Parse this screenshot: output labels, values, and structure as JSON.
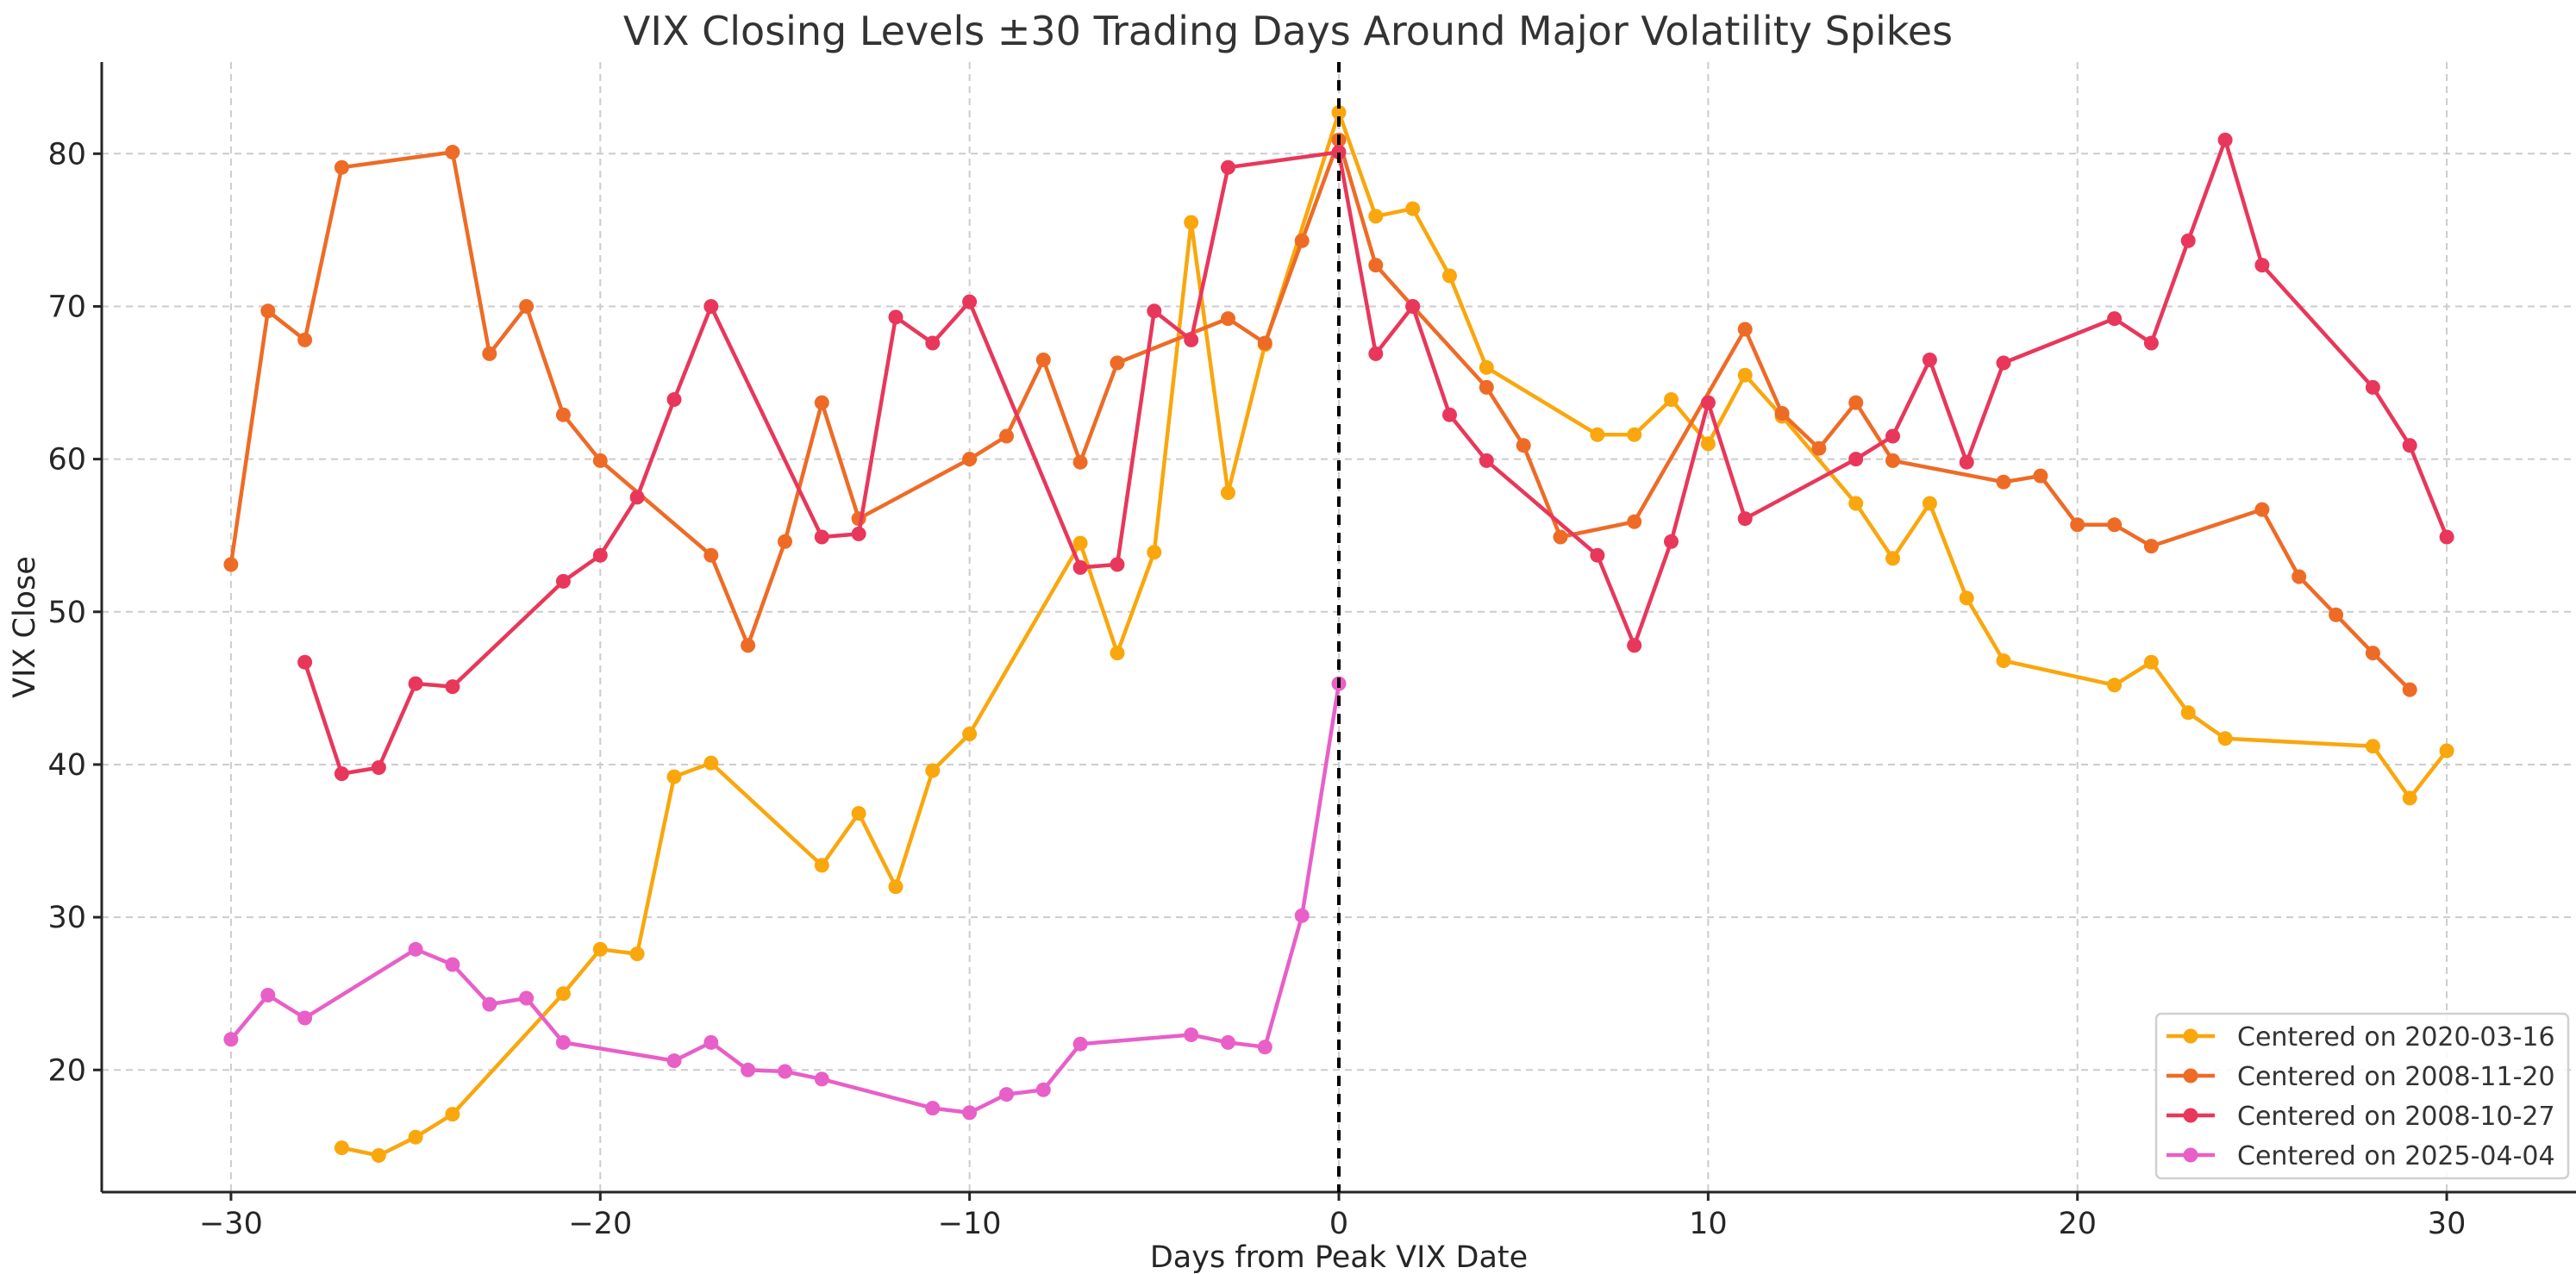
{
  "chart_data": {
    "type": "line",
    "title": "VIX Closing Levels ±30 Trading Days Around Major Volatility Spikes",
    "xlabel": "Days from Peak VIX Date",
    "ylabel": "VIX Close",
    "xlim": [
      -33.5,
      33.5
    ],
    "ylim": [
      12,
      86
    ],
    "xticks": [
      -30,
      -20,
      -10,
      0,
      10,
      20,
      30
    ],
    "yticks": [
      20,
      30,
      40,
      50,
      60,
      70,
      80
    ],
    "grid": true,
    "legend_position": "lower-right",
    "reference_line": {
      "x": 0,
      "style": "dashed",
      "color": "#000000"
    },
    "series": [
      {
        "name": "Centered on 2020-03-16",
        "color": "#f9a70d",
        "points": [
          [
            -27,
            14.9
          ],
          [
            -26,
            14.4
          ],
          [
            -25,
            15.6
          ],
          [
            -24,
            17.1
          ],
          [
            -21,
            25.0
          ],
          [
            -20,
            27.9
          ],
          [
            -19,
            27.6
          ],
          [
            -18,
            39.2
          ],
          [
            -17,
            40.1
          ],
          [
            -14,
            33.4
          ],
          [
            -13,
            36.8
          ],
          [
            -12,
            32.0
          ],
          [
            -11,
            39.6
          ],
          [
            -10,
            42.0
          ],
          [
            -7,
            54.5
          ],
          [
            -6,
            47.3
          ],
          [
            -5,
            53.9
          ],
          [
            -4,
            75.5
          ],
          [
            -3,
            57.8
          ],
          [
            -2,
            67.5
          ],
          [
            0,
            82.7
          ],
          [
            1,
            75.9
          ],
          [
            2,
            76.4
          ],
          [
            3,
            72.0
          ],
          [
            4,
            66.0
          ],
          [
            7,
            61.6
          ],
          [
            8,
            61.6
          ],
          [
            9,
            63.9
          ],
          [
            10,
            61.0
          ],
          [
            11,
            65.5
          ],
          [
            12,
            62.8
          ],
          [
            14,
            57.1
          ],
          [
            15,
            53.5
          ],
          [
            16,
            57.1
          ],
          [
            17,
            50.9
          ],
          [
            18,
            46.8
          ],
          [
            21,
            45.2
          ],
          [
            22,
            46.7
          ],
          [
            23,
            43.4
          ],
          [
            24,
            41.7
          ],
          [
            28,
            41.2
          ],
          [
            29,
            37.8
          ],
          [
            30,
            40.9
          ]
        ]
      },
      {
        "name": "Centered on 2008-11-20",
        "color": "#ee6b26",
        "points": [
          [
            -30,
            53.1
          ],
          [
            -29,
            69.7
          ],
          [
            -28,
            67.8
          ],
          [
            -27,
            79.1
          ],
          [
            -24,
            80.1
          ],
          [
            -23,
            66.9
          ],
          [
            -22,
            70.0
          ],
          [
            -21,
            62.9
          ],
          [
            -20,
            59.9
          ],
          [
            -17,
            53.7
          ],
          [
            -16,
            47.8
          ],
          [
            -15,
            54.6
          ],
          [
            -14,
            63.7
          ],
          [
            -13,
            56.1
          ],
          [
            -10,
            60.0
          ],
          [
            -9,
            61.5
          ],
          [
            -8,
            66.5
          ],
          [
            -7,
            59.8
          ],
          [
            -6,
            66.3
          ],
          [
            -3,
            69.2
          ],
          [
            -2,
            67.6
          ],
          [
            -1,
            74.3
          ],
          [
            0,
            80.9
          ],
          [
            1,
            72.7
          ],
          [
            2,
            70.0
          ],
          [
            4,
            64.7
          ],
          [
            5,
            60.9
          ],
          [
            6,
            54.9
          ],
          [
            8,
            55.9
          ],
          [
            11,
            68.5
          ],
          [
            12,
            63.0
          ],
          [
            13,
            60.7
          ],
          [
            14,
            63.7
          ],
          [
            15,
            59.9
          ],
          [
            18,
            58.5
          ],
          [
            19,
            58.9
          ],
          [
            20,
            55.7
          ],
          [
            21,
            55.7
          ],
          [
            22,
            54.3
          ],
          [
            25,
            56.7
          ],
          [
            26,
            52.3
          ],
          [
            27,
            49.8
          ],
          [
            28,
            47.3
          ],
          [
            29,
            44.9
          ]
        ]
      },
      {
        "name": "Centered on 2008-10-27",
        "color": "#e8375b",
        "points": [
          [
            -28,
            46.7
          ],
          [
            -27,
            39.4
          ],
          [
            -26,
            39.8
          ],
          [
            -25,
            45.3
          ],
          [
            -24,
            45.1
          ],
          [
            -21,
            52.0
          ],
          [
            -20,
            53.7
          ],
          [
            -19,
            57.5
          ],
          [
            -18,
            63.9
          ],
          [
            -17,
            70.0
          ],
          [
            -14,
            54.9
          ],
          [
            -13,
            55.1
          ],
          [
            -12,
            69.3
          ],
          [
            -11,
            67.6
          ],
          [
            -10,
            70.3
          ],
          [
            -7,
            52.9
          ],
          [
            -6,
            53.1
          ],
          [
            -5,
            69.7
          ],
          [
            -4,
            67.8
          ],
          [
            -3,
            79.1
          ],
          [
            0,
            80.1
          ],
          [
            1,
            66.9
          ],
          [
            2,
            70.0
          ],
          [
            3,
            62.9
          ],
          [
            4,
            59.9
          ],
          [
            7,
            53.7
          ],
          [
            8,
            47.8
          ],
          [
            9,
            54.6
          ],
          [
            10,
            63.7
          ],
          [
            11,
            56.1
          ],
          [
            14,
            60.0
          ],
          [
            15,
            61.5
          ],
          [
            16,
            66.5
          ],
          [
            17,
            59.8
          ],
          [
            18,
            66.3
          ],
          [
            21,
            69.2
          ],
          [
            22,
            67.6
          ],
          [
            23,
            74.3
          ],
          [
            24,
            80.9
          ],
          [
            25,
            72.7
          ],
          [
            28,
            64.7
          ],
          [
            29,
            60.9
          ],
          [
            30,
            54.9
          ]
        ]
      },
      {
        "name": "Centered on 2025-04-04",
        "color": "#e85fc8",
        "points": [
          [
            -30,
            22.0
          ],
          [
            -29,
            24.9
          ],
          [
            -28,
            23.4
          ],
          [
            -25,
            27.9
          ],
          [
            -24,
            26.9
          ],
          [
            -23,
            24.3
          ],
          [
            -22,
            24.7
          ],
          [
            -21,
            21.8
          ],
          [
            -18,
            20.6
          ],
          [
            -17,
            21.8
          ],
          [
            -16,
            20.0
          ],
          [
            -15,
            19.9
          ],
          [
            -14,
            19.4
          ],
          [
            -11,
            17.5
          ],
          [
            -10,
            17.2
          ],
          [
            -9,
            18.4
          ],
          [
            -8,
            18.7
          ],
          [
            -7,
            21.7
          ],
          [
            -4,
            22.3
          ],
          [
            -3,
            21.8
          ],
          [
            -2,
            21.5
          ],
          [
            -1,
            30.1
          ],
          [
            0,
            45.3
          ]
        ]
      }
    ]
  }
}
